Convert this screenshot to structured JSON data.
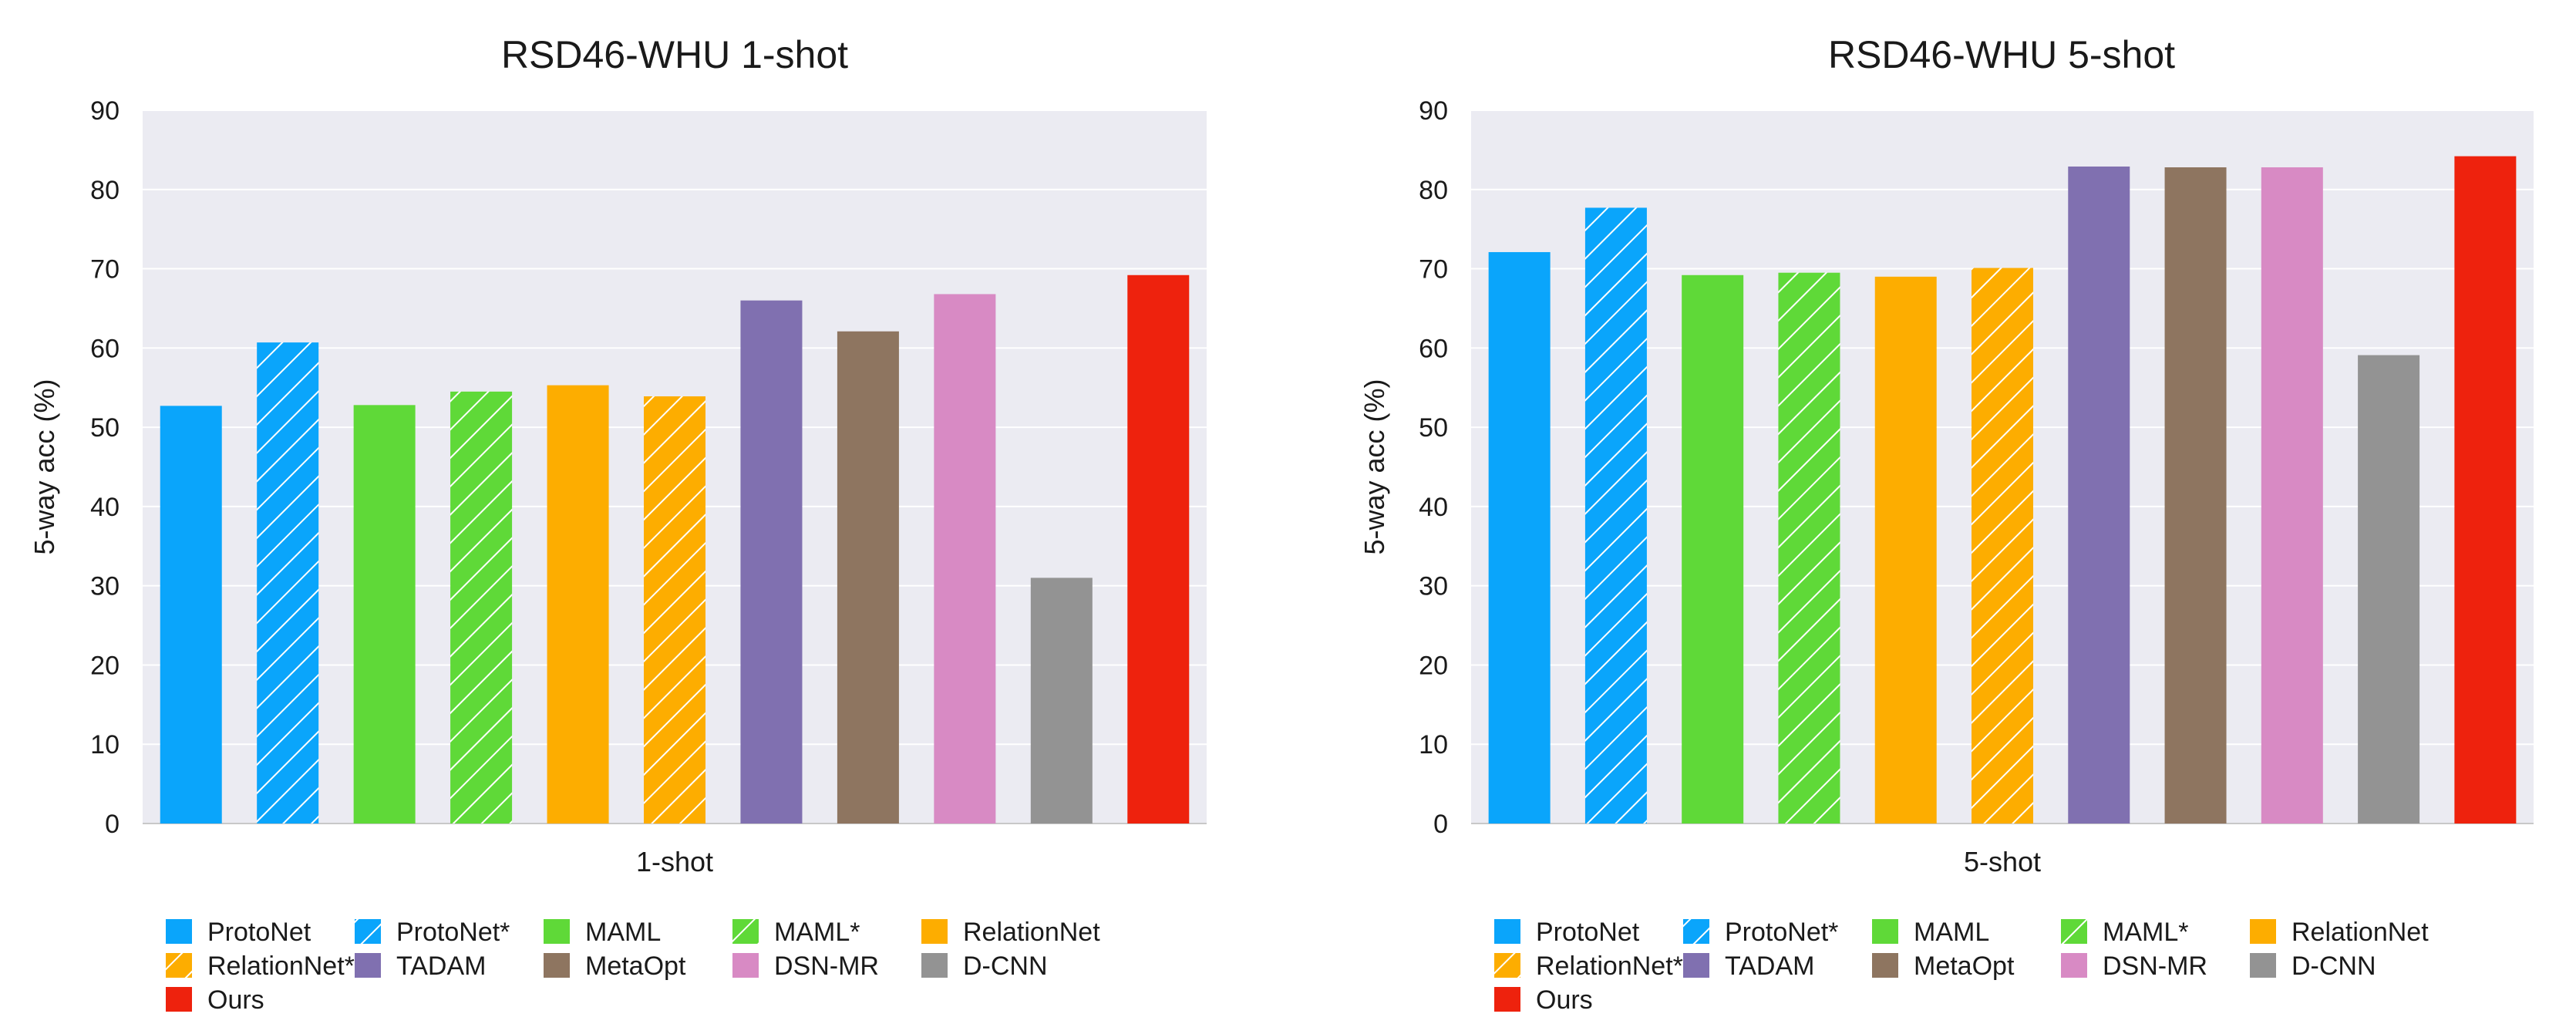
{
  "methods": [
    {
      "name": "ProtoNet",
      "color": "#0aa5fb",
      "hatched": false
    },
    {
      "name": "ProtoNet*",
      "color": "#0aa5fb",
      "hatched": true
    },
    {
      "name": "MAML",
      "color": "#5fd938",
      "hatched": false
    },
    {
      "name": "MAML*",
      "color": "#5fd938",
      "hatched": true
    },
    {
      "name": "RelationNet",
      "color": "#fdad00",
      "hatched": false
    },
    {
      "name": "RelationNet*",
      "color": "#fdad00",
      "hatched": true
    },
    {
      "name": "TADAM",
      "color": "#8070b0",
      "hatched": false
    },
    {
      "name": "MetaOpt",
      "color": "#8e7560",
      "hatched": false
    },
    {
      "name": "DSN-MR",
      "color": "#d88ac4",
      "hatched": false
    },
    {
      "name": "D-CNN",
      "color": "#939393",
      "hatched": false
    },
    {
      "name": "Ours",
      "color": "#ee220d",
      "hatched": false
    }
  ],
  "chart_data": [
    {
      "type": "bar",
      "title": "RSD46-WHU 1-shot",
      "xlabel": "1-shot",
      "ylabel": "5-way acc (%)",
      "ylim": [
        0,
        90
      ],
      "yticks": [
        0,
        10,
        20,
        30,
        40,
        50,
        60,
        70,
        80,
        90
      ],
      "grid": true,
      "legend": "bottom",
      "categories": [
        "ProtoNet",
        "ProtoNet*",
        "MAML",
        "MAML*",
        "RelationNet",
        "RelationNet*",
        "TADAM",
        "MetaOpt",
        "DSN-MR",
        "D-CNN",
        "Ours"
      ],
      "values": [
        52.7,
        60.7,
        52.8,
        54.5,
        55.3,
        53.9,
        66.0,
        62.1,
        66.8,
        31.0,
        69.2
      ]
    },
    {
      "type": "bar",
      "title": "RSD46-WHU 5-shot",
      "xlabel": "5-shot",
      "ylabel": "5-way acc (%)",
      "ylim": [
        0,
        90
      ],
      "yticks": [
        0,
        10,
        20,
        30,
        40,
        50,
        60,
        70,
        80,
        90
      ],
      "grid": true,
      "legend": "bottom",
      "categories": [
        "ProtoNet",
        "ProtoNet*",
        "MAML",
        "MAML*",
        "RelationNet",
        "RelationNet*",
        "TADAM",
        "MetaOpt",
        "DSN-MR",
        "D-CNN",
        "Ours"
      ],
      "values": [
        72.1,
        77.7,
        69.2,
        69.5,
        69.0,
        70.1,
        82.9,
        82.8,
        82.8,
        59.1,
        84.2
      ]
    }
  ]
}
